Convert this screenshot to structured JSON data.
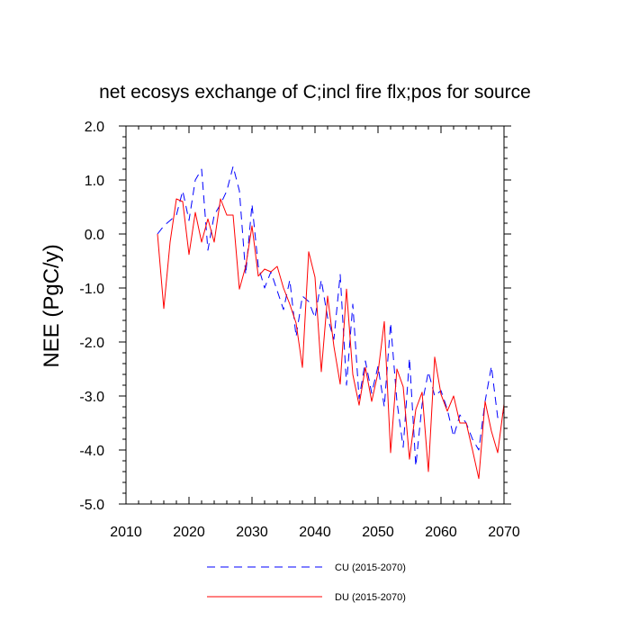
{
  "chart_data": {
    "type": "line",
    "title": "net ecosys exchange of C;incl fire flx;pos for source",
    "xlabel": "",
    "ylabel": "NEE  (PgC/y)",
    "xlim": [
      2010,
      2070
    ],
    "ylim": [
      -5.0,
      2.0
    ],
    "xticks": [
      2010,
      2020,
      2030,
      2040,
      2050,
      2060,
      2070
    ],
    "yticks": [
      -5.0,
      -4.0,
      -3.0,
      -2.0,
      -1.0,
      0.0,
      1.0,
      2.0
    ],
    "ytick_labels": [
      "-5.0",
      "-4.0",
      "-3.0",
      "-2.0",
      "-1.0",
      "0.0",
      "1.0",
      "2.0"
    ],
    "legend_position": "bottom",
    "x": [
      2015,
      2016,
      2017,
      2018,
      2019,
      2020,
      2021,
      2022,
      2023,
      2024,
      2025,
      2026,
      2027,
      2028,
      2029,
      2030,
      2031,
      2032,
      2033,
      2034,
      2035,
      2036,
      2037,
      2038,
      2039,
      2040,
      2041,
      2042,
      2043,
      2044,
      2045,
      2046,
      2047,
      2048,
      2049,
      2050,
      2051,
      2052,
      2053,
      2054,
      2055,
      2056,
      2057,
      2058,
      2059,
      2060,
      2061,
      2062,
      2063,
      2064,
      2065,
      2066,
      2067,
      2068,
      2069,
      2070
    ],
    "series": [
      {
        "name": "CU (2015-2070)",
        "color": "#0000ff",
        "style": "dashed",
        "values": [
          0.0,
          0.15,
          0.25,
          0.35,
          0.8,
          0.25,
          1.0,
          1.2,
          -0.3,
          0.35,
          0.55,
          0.8,
          1.25,
          0.8,
          -0.75,
          0.55,
          -0.6,
          -1.0,
          -0.7,
          -1.05,
          -1.4,
          -0.85,
          -1.9,
          -1.15,
          -1.25,
          -1.55,
          -0.85,
          -1.55,
          -1.95,
          -0.75,
          -2.8,
          -1.3,
          -3.05,
          -2.35,
          -2.95,
          -2.45,
          -3.2,
          -1.65,
          -3.1,
          -3.95,
          -2.3,
          -4.3,
          -3.15,
          -2.55,
          -3.0,
          -2.9,
          -3.25,
          -3.75,
          -3.35,
          -3.5,
          -3.8,
          -4.0,
          -3.1,
          -2.45,
          -3.4,
          -3.3
        ]
      },
      {
        "name": "DU (2015-2070)",
        "color": "#ff0000",
        "style": "solid",
        "values": [
          0.0,
          -1.38,
          -0.15,
          0.65,
          0.6,
          -0.38,
          0.4,
          -0.15,
          0.28,
          -0.15,
          0.65,
          0.35,
          0.35,
          -1.02,
          -0.6,
          0.15,
          -0.78,
          -0.65,
          -0.7,
          -0.6,
          -1.0,
          -1.3,
          -1.65,
          -2.47,
          -0.33,
          -0.8,
          -2.55,
          -1.15,
          -2.08,
          -2.78,
          -1.02,
          -2.6,
          -3.17,
          -2.47,
          -3.1,
          -2.57,
          -1.62,
          -4.05,
          -2.5,
          -2.83,
          -4.17,
          -3.25,
          -2.93,
          -4.4,
          -2.28,
          -2.97,
          -3.28,
          -3.0,
          -3.5,
          -3.5,
          -4.0,
          -4.53,
          -3.1,
          -3.65,
          -4.05,
          -3.15
        ]
      }
    ]
  }
}
